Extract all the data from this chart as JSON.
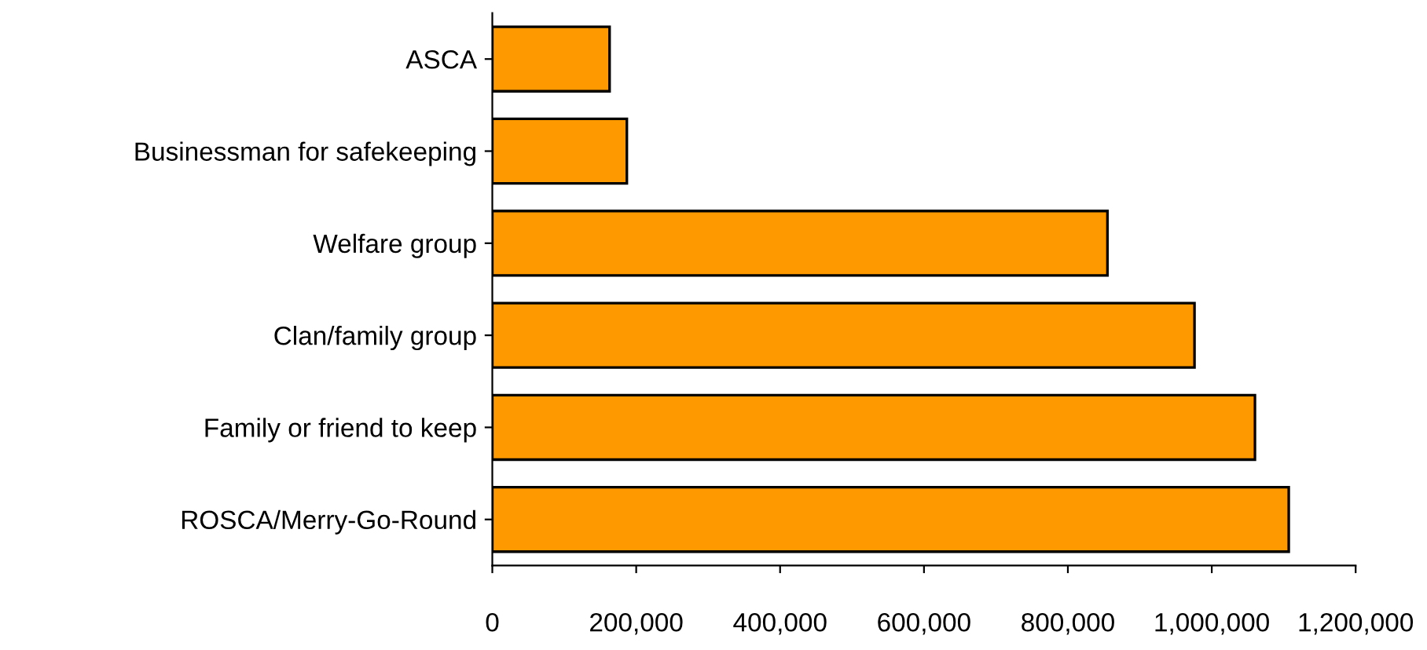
{
  "chart_data": {
    "type": "bar",
    "orientation": "horizontal",
    "categories": [
      "ASCA",
      "Businessman for safekeeping",
      "Welfare group",
      "Clan/family group",
      "Family or friend to keep",
      "ROSCA/Merry-Go-Round"
    ],
    "values": [
      163000,
      187000,
      855000,
      976000,
      1060000,
      1107000
    ],
    "color": "#ff9900",
    "xlim": [
      0,
      1200000
    ],
    "xticks": [
      0,
      {
        "value": 200000,
        "label": "200,000"
      },
      {
        "value": 400000,
        "label": "400,000"
      },
      {
        "value": 600000,
        "label": "600,000"
      },
      {
        "value": 800000,
        "label": "800,000"
      },
      {
        "value": 1000000,
        "label": "1,000,000"
      },
      {
        "value": 1200000,
        "label": "1,200,000"
      }
    ],
    "grid": false,
    "legend": false
  }
}
